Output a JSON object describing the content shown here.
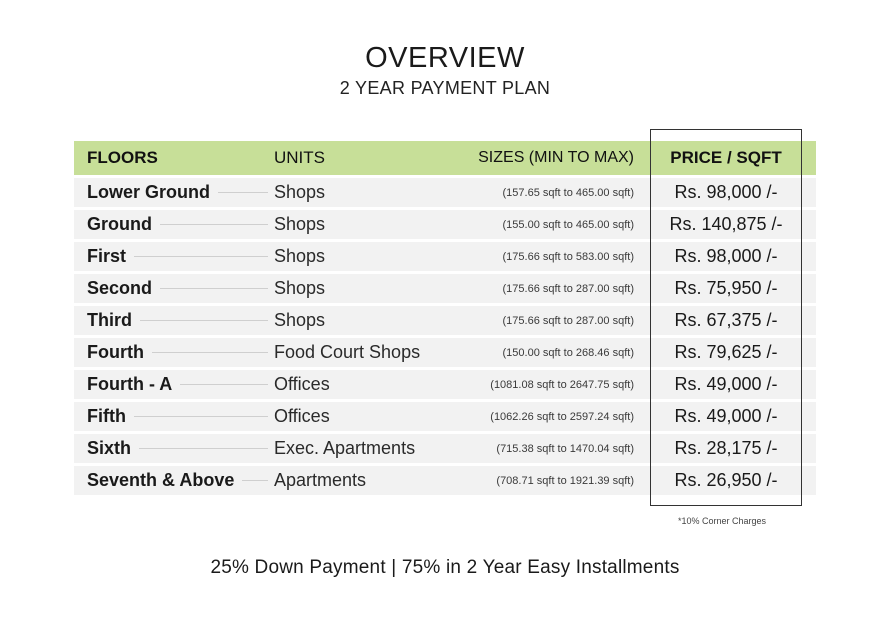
{
  "title": "OVERVIEW",
  "subtitle": "2 YEAR PAYMENT PLAN",
  "columns": {
    "floors": "FLOORS",
    "units": "UNITS",
    "sizes": "SIZES (MIN TO MAX)",
    "price": "PRICE / SQFT"
  },
  "rows": [
    {
      "floor": "Lower Ground",
      "unit": "Shops",
      "size": "(157.65 sqft to 465.00 sqft)",
      "price": "Rs. 98,000 /-"
    },
    {
      "floor": "Ground",
      "unit": "Shops",
      "size": "(155.00 sqft to 465.00 sqft)",
      "price": "Rs. 140,875 /-"
    },
    {
      "floor": "First",
      "unit": "Shops",
      "size": "(175.66 sqft to 583.00 sqft)",
      "price": "Rs. 98,000 /-"
    },
    {
      "floor": "Second",
      "unit": "Shops",
      "size": "(175.66 sqft to 287.00 sqft)",
      "price": "Rs. 75,950 /-"
    },
    {
      "floor": "Third",
      "unit": "Shops",
      "size": "(175.66 sqft to 287.00 sqft)",
      "price": "Rs. 67,375 /-"
    },
    {
      "floor": "Fourth",
      "unit": "Food Court Shops",
      "size": "(150.00 sqft to 268.46 sqft)",
      "price": "Rs. 79,625 /-"
    },
    {
      "floor": "Fourth - A",
      "unit": "Offices",
      "size": "(1081.08 sqft to 2647.75 sqft)",
      "price": "Rs. 49,000 /-"
    },
    {
      "floor": "Fifth",
      "unit": "Offices",
      "size": "(1062.26 sqft to 2597.24 sqft)",
      "price": "Rs. 49,000 /-"
    },
    {
      "floor": "Sixth",
      "unit": "Exec. Apartments",
      "size": "(715.38 sqft to 1470.04 sqft)",
      "price": "Rs. 28,175 /-"
    },
    {
      "floor": "Seventh & Above",
      "unit": "Apartments",
      "size": "(708.71 sqft to 1921.39 sqft)",
      "price": "Rs. 26,950 /-"
    }
  ],
  "note": "*10% Corner Charges",
  "footer": "25% Down Payment | 75% in 2 Year Easy Installments",
  "colors": {
    "header_bg": "#c7df98",
    "row_bg": "#f2f2f2"
  }
}
